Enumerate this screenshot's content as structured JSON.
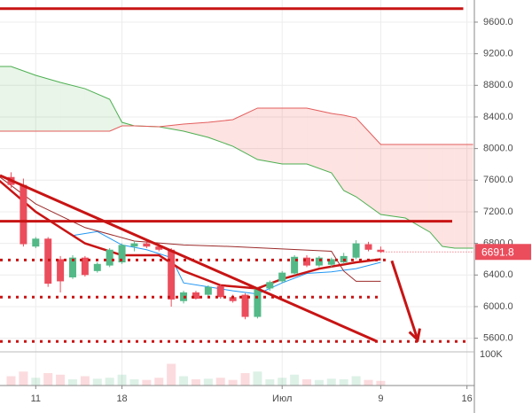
{
  "chart_data": {
    "type": "candlestick",
    "xlim": [
      -2.9,
      35.6
    ],
    "ylim": [
      5450,
      9880
    ],
    "xticks": [
      {
        "value": 0,
        "label": "11"
      },
      {
        "value": 7,
        "label": "18"
      },
      {
        "value": 20,
        "label": "Июл"
      },
      {
        "value": 28,
        "label": "9"
      },
      {
        "value": 35,
        "label": "16"
      }
    ],
    "yticks": [
      {
        "value": 5600,
        "label": "5600.0"
      },
      {
        "value": 6000,
        "label": "6000.0"
      },
      {
        "value": 6400,
        "label": "6400.0"
      },
      {
        "value": 6800,
        "label": "6800.0"
      },
      {
        "value": 7200,
        "label": "7200.0"
      },
      {
        "value": 7600,
        "label": "7600.0"
      },
      {
        "value": 8000,
        "label": "8000.0"
      },
      {
        "value": 8400,
        "label": "8400.0"
      },
      {
        "value": 8800,
        "label": "8800.0"
      },
      {
        "value": 9200,
        "label": "9200.0"
      },
      {
        "value": 9600,
        "label": "9600.0"
      }
    ],
    "grid": true,
    "up_color": "#53b987",
    "down_color": "#eb4d5c",
    "x": [
      -2,
      -1,
      0,
      1,
      2,
      3,
      4,
      5,
      6,
      7,
      8,
      9,
      10,
      11,
      12,
      13,
      14,
      15,
      16,
      17,
      18,
      19,
      20,
      21,
      22,
      23,
      24,
      25,
      26,
      27,
      28
    ],
    "open": [
      7640,
      7540,
      6760,
      6860,
      6600,
      6370,
      6620,
      6450,
      6520,
      6560,
      6760,
      6800,
      6760,
      6720,
      6070,
      6180,
      6150,
      6260,
      6120,
      6150,
      5870,
      6230,
      6320,
      6420,
      6620,
      6520,
      6530,
      6560,
      6620,
      6790,
      6720
    ],
    "high": [
      7700,
      7620,
      6880,
      6880,
      6640,
      6650,
      6640,
      6560,
      6740,
      6800,
      6830,
      6840,
      6800,
      6740,
      6200,
      6200,
      6270,
      6280,
      6150,
      6170,
      6250,
      6330,
      6450,
      6650,
      6650,
      6640,
      6620,
      6680,
      6840,
      6820,
      6760
    ],
    "low": [
      7500,
      6760,
      6740,
      6250,
      6180,
      6350,
      6380,
      6430,
      6500,
      6540,
      6700,
      6740,
      6700,
      6000,
      6040,
      6090,
      6130,
      6100,
      6050,
      5840,
      5850,
      6200,
      6300,
      6400,
      6500,
      6500,
      6500,
      6540,
      6600,
      6700,
      6680
    ],
    "close": [
      7540,
      6790,
      6860,
      6290,
      6320,
      6620,
      6400,
      6540,
      6720,
      6780,
      6800,
      6760,
      6720,
      6090,
      6180,
      6100,
      6250,
      6120,
      6070,
      5870,
      6230,
      6310,
      6430,
      6630,
      6520,
      6620,
      6600,
      6640,
      6800,
      6720,
      6691.8
    ],
    "volume": [
      30000,
      45000,
      25000,
      40000,
      35000,
      20000,
      30000,
      22000,
      25000,
      35000,
      20000,
      18000,
      25000,
      70000,
      30000,
      20000,
      22000,
      25000,
      18000,
      40000,
      45000,
      20000,
      25000,
      35000,
      20000,
      18000,
      22000,
      20000,
      30000,
      18000,
      15000
    ],
    "volume_ylim": [
      0,
      100000
    ],
    "volume_ticks": [
      {
        "value": 100000,
        "label": "100K"
      }
    ],
    "cloud": {
      "x": [
        -3,
        -2,
        0,
        2,
        4,
        6,
        7,
        8,
        10,
        12,
        14,
        16,
        18,
        20,
        22,
        24,
        25,
        26,
        27,
        28,
        30,
        32,
        33,
        34,
        35.5
      ],
      "span_a": [
        9039,
        9039,
        8927,
        8837,
        8758,
        8624,
        8332,
        8287,
        8276,
        8220,
        8142,
        8029,
        7861,
        7805,
        7805,
        7693,
        7469,
        7390,
        7278,
        7166,
        7121,
        6942,
        6762,
        6740,
        6740
      ],
      "span_b": [
        8220,
        8220,
        8220,
        8220,
        8220,
        8220,
        8287,
        8287,
        8276,
        8310,
        8332,
        8366,
        8512,
        8512,
        8512,
        8444,
        8422,
        8388,
        8220,
        8052,
        8052,
        8052,
        8052,
        8052,
        8052
      ],
      "a_color": "#4caf50",
      "b_color": "#e35d5d",
      "up_fill": "rgba(76,175,80,0.13)",
      "down_fill": "rgba(244,67,54,0.15)"
    },
    "series": [
      {
        "color": "#2196f3",
        "width": 1,
        "x": [
          3,
          5,
          7,
          9,
          11,
          12,
          14,
          16,
          18,
          20,
          22,
          24,
          26,
          28
        ],
        "values": [
          6900,
          6950,
          6780,
          6720,
          6620,
          6300,
          6250,
          6200,
          6160,
          6300,
          6420,
          6440,
          6480,
          6560
        ]
      },
      {
        "color": "#9c2b2b",
        "width": 1,
        "x": [
          -3,
          0,
          4,
          8,
          12,
          16,
          20,
          24,
          25,
          26,
          28
        ],
        "values": [
          7650,
          7300,
          7000,
          6830,
          6780,
          6760,
          6730,
          6700,
          6450,
          6320,
          6320
        ]
      },
      {
        "color": "#c81414",
        "width": 2.5,
        "x": [
          -3,
          0,
          4,
          7,
          10,
          12,
          15,
          18,
          20,
          23,
          26,
          28
        ],
        "values": [
          7600,
          7200,
          6800,
          6650,
          6650,
          6450,
          6270,
          6230,
          6350,
          6480,
          6560,
          6600
        ]
      }
    ],
    "levels": [
      {
        "value": 9770,
        "to": 34.7,
        "style": "solid"
      },
      {
        "value": 7080,
        "to": 33.8,
        "style": "solid"
      },
      {
        "value": 6590,
        "to": 28.4,
        "style": "dotted"
      },
      {
        "value": 6120,
        "to": 28,
        "style": "dotted"
      },
      {
        "value": 5560,
        "to": 35.2,
        "style": "dotted"
      }
    ],
    "level_color": "#c81414",
    "trend_line": {
      "x": [
        -2.9,
        27.7
      ],
      "y": [
        7660,
        5560
      ]
    },
    "arrow": {
      "x": [
        28.9,
        31
      ],
      "y": [
        6580,
        5580
      ]
    }
  }
}
